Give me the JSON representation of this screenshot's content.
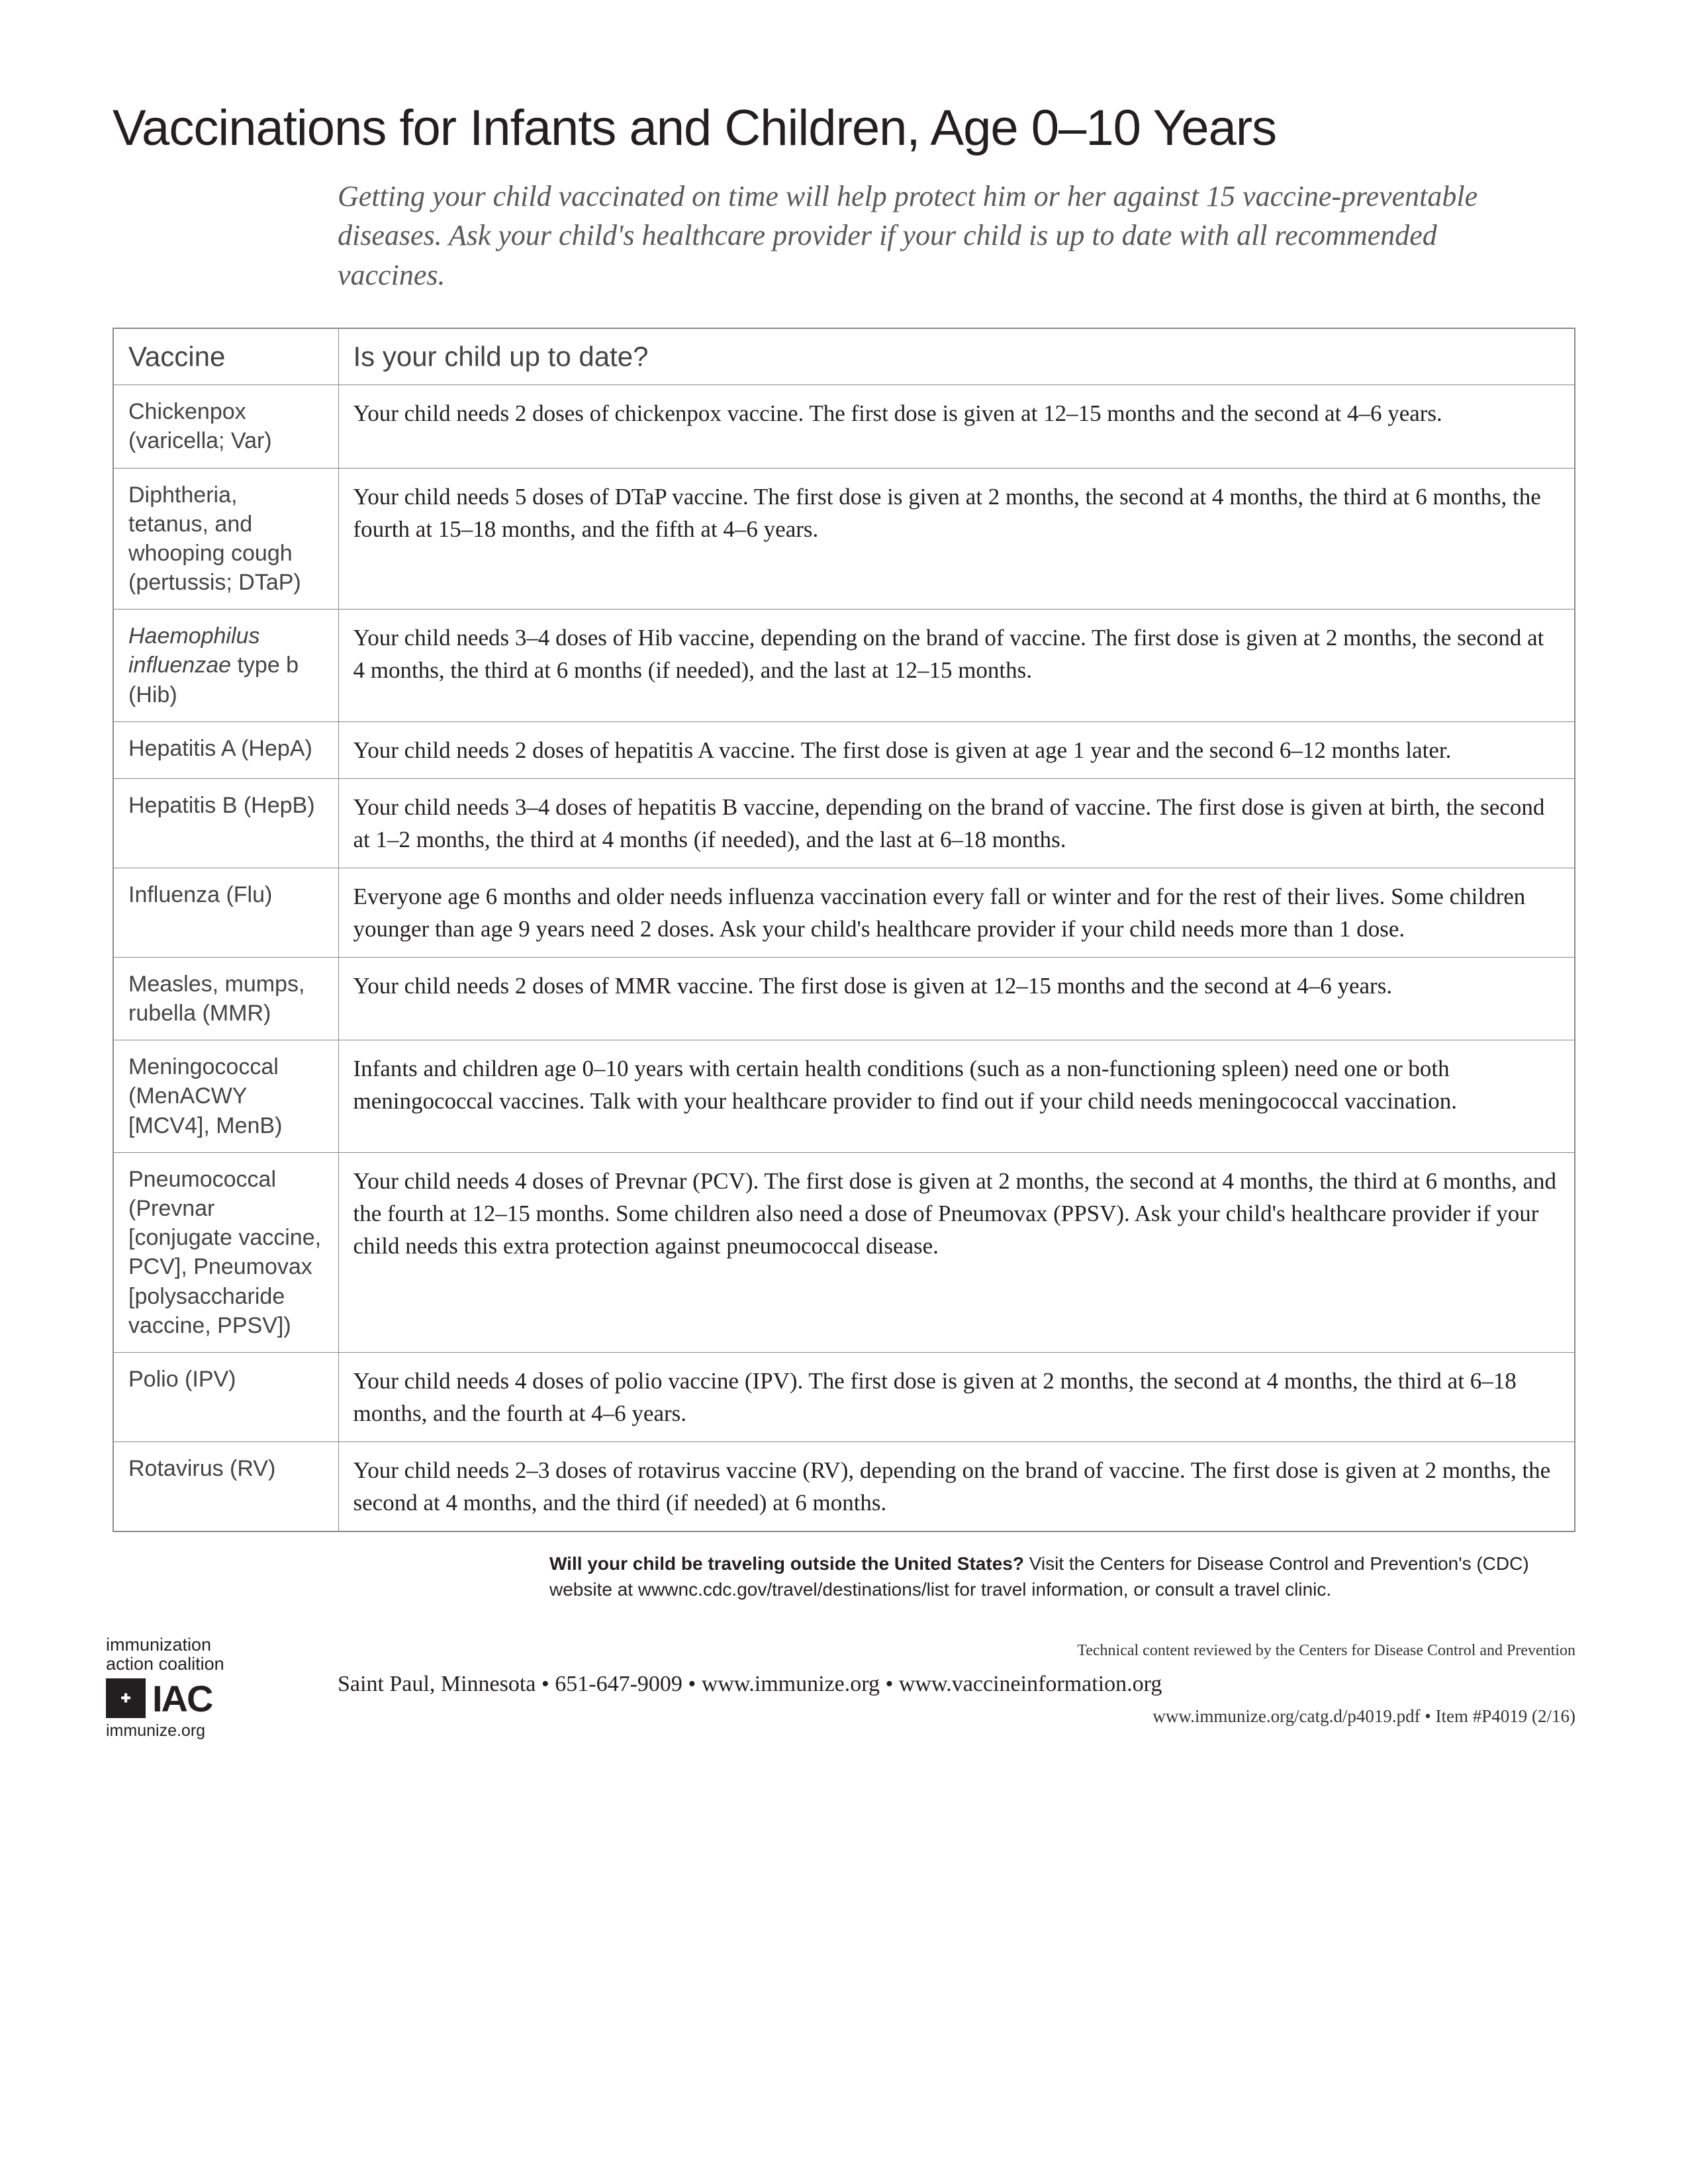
{
  "title": "Vaccinations for Infants and Children, Age 0–10 Years",
  "intro": "Getting your child vaccinated on time will help protect him or her against 15 vaccine-preventable diseases. Ask your child's healthcare provider if your child is up to date with all recommended vaccines.",
  "table": {
    "columns": [
      "Vaccine",
      "Is your child up to date?"
    ],
    "rows": [
      {
        "vaccine_html": "Chickenpox (varicella; Var)",
        "desc": "Your child needs 2 doses of chickenpox vaccine. The first dose is given at 12–15 months and the second at 4–6 years."
      },
      {
        "vaccine_html": "Diphtheria, tetanus, and whooping cough (pertussis; DTaP)",
        "desc": "Your child needs 5 doses of DTaP vaccine. The first dose is given at 2 months, the second at 4 months, the third at 6 months, the fourth at 15–18 months, and the fifth at 4–6 years."
      },
      {
        "vaccine_html": "<span class=\"italic-part\">Haemophilus influenzae</span> type b (Hib)",
        "desc": "Your child needs 3–4 doses of Hib vaccine, depending on the brand of vaccine. The first dose is given at 2 months, the second at 4 months, the third at 6 months (if needed), and the last at 12–15 months."
      },
      {
        "vaccine_html": "Hepatitis A (HepA)",
        "desc": "Your child needs 2 doses of hepatitis A vaccine. The first dose is given at age 1 year and the second 6–12 months later."
      },
      {
        "vaccine_html": "Hepatitis B (HepB)",
        "desc": "Your child needs 3–4 doses of hepatitis B vaccine, depending on the brand of vaccine. The first dose is given at birth, the second at 1–2 months, the third at 4 months (if needed), and the last at 6–18 months."
      },
      {
        "vaccine_html": "Influenza (Flu)",
        "desc": "Everyone age 6 months and older needs influenza vaccination every fall or winter and for the rest of their lives. Some children younger than age 9 years need 2 doses. Ask your child's healthcare provider if your child needs more than 1 dose."
      },
      {
        "vaccine_html": "Measles, mumps, rubella (MMR)",
        "desc": "Your child needs 2 doses of MMR vaccine. The first dose is given at 12–15 months and the second at 4–6 years."
      },
      {
        "vaccine_html": "Meningococcal (MenACWY [MCV4], MenB)",
        "desc": "Infants and children age 0–10 years with certain health conditions (such as a non-functioning spleen) need one or both meningococcal vaccines. Talk with your healthcare provider to find out if your child needs meningococcal vaccination."
      },
      {
        "vaccine_html": "Pneumococcal (Prevnar [conjugate vaccine, PCV], Pneumovax [polysaccharide vaccine, PPSV])",
        "desc": "Your child needs 4 doses of Prevnar (PCV). The first dose is given at 2 months, the second at 4 months, the third at 6 months, and the fourth at 12–15 months. Some children also need a dose of Pneumovax (PPSV). Ask your child's healthcare provider if your child needs this extra protection against pneumococcal disease."
      },
      {
        "vaccine_html": "Polio (IPV)",
        "desc": "Your child needs 4 doses of polio vaccine (IPV). The first dose is given at 2 months, the second at 4 months, the third at 6–18 months, and the fourth at 4–6 years."
      },
      {
        "vaccine_html": "Rotavirus (RV)",
        "desc": "Your child needs 2–3 doses of rotavirus vaccine (RV), depending on the brand of vaccine. The first dose is given at 2 months, the second at 4 months, and the third (if needed) at 6 months."
      }
    ]
  },
  "travel": {
    "bold": "Will your child be traveling outside the United States?",
    "rest": " Visit the Centers for Disease Control and Prevention's (CDC) website at wwwnc.cdc.gov/travel/destinations/list for travel information, or consult a travel clinic."
  },
  "logo": {
    "line1": "immunization",
    "line2": "action coalition",
    "iac": "IAC",
    "url": "immunize.org"
  },
  "footer": {
    "review": "Technical content reviewed by the Centers for Disease Control and Prevention",
    "contact": "Saint Paul, Minnesota • 651-647-9009 • www.immunize.org • www.vaccineinformation.org",
    "item": "www.immunize.org/catg.d/p4019.pdf • Item #P4019 (2/16)"
  }
}
